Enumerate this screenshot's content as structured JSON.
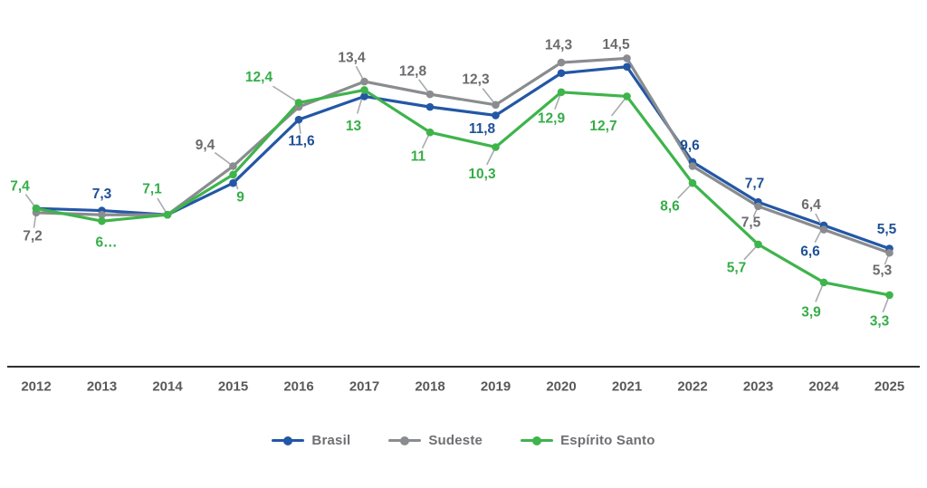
{
  "chart_data": {
    "type": "line",
    "title": "",
    "xlabel": "",
    "ylabel": "",
    "x_labels": [
      "2012",
      "2013",
      "2014",
      "2015",
      "2016",
      "2017",
      "2018",
      "2019",
      "2020",
      "2021",
      "2022",
      "2023",
      "2024",
      "2025"
    ],
    "ylim": [
      0,
      16.5
    ],
    "grid": false,
    "legend_position": "bottom",
    "background": "#FFFFFF",
    "axis_color": "#2F2F2F",
    "tick_color": "#58595B",
    "leader_color": "#A8AAAD",
    "legend_text_color": "#6E6F72",
    "series": [
      {
        "name": "Brasil",
        "color": "#2357A5",
        "label_color": "#1E5096",
        "values": [
          7.4,
          7.3,
          7.1,
          8.6,
          11.6,
          12.7,
          12.2,
          11.8,
          13.8,
          14.1,
          9.6,
          7.7,
          6.6,
          5.5
        ],
        "labels": [
          null,
          "7,3",
          null,
          null,
          "11,6",
          null,
          null,
          "11,8",
          null,
          null,
          "9,6",
          "7,7",
          "6,6",
          "5,5"
        ],
        "label_dx": [
          0,
          0,
          0,
          0,
          3,
          0,
          0,
          -15,
          0,
          0,
          -3,
          -4,
          -15,
          -3
        ],
        "label_dy": [
          0,
          -18,
          0,
          0,
          24,
          0,
          0,
          15,
          0,
          0,
          -18,
          -20,
          29,
          -21
        ],
        "leaders": [
          false,
          false,
          false,
          false,
          true,
          false,
          false,
          false,
          false,
          false,
          false,
          false,
          true,
          false
        ]
      },
      {
        "name": "Sudeste",
        "color": "#8A8C8F",
        "label_color": "#6A6B6E",
        "values": [
          7.2,
          7.1,
          7.1,
          9.4,
          12.2,
          13.4,
          12.8,
          12.3,
          14.3,
          14.5,
          9.4,
          7.5,
          6.4,
          5.3
        ],
        "labels": [
          "7,2",
          null,
          null,
          "9,4",
          null,
          "13,4",
          "12,8",
          "12,3",
          "14,3",
          "14,5",
          null,
          "7,5",
          "6,4",
          "5,3"
        ],
        "label_dx": [
          -4,
          0,
          0,
          -31,
          0,
          -14,
          -19,
          -22,
          -3,
          -12,
          0,
          -8,
          -14,
          -8
        ],
        "label_dy": [
          26,
          0,
          0,
          -23,
          0,
          -26,
          -25,
          -28,
          -19,
          -15,
          0,
          18,
          -27,
          20
        ],
        "leaders": [
          true,
          false,
          false,
          true,
          false,
          true,
          true,
          true,
          false,
          false,
          false,
          true,
          true,
          true
        ]
      },
      {
        "name": "Espírito Santo",
        "color": "#3EB44B",
        "label_color": "#35AD47",
        "values": [
          7.4,
          6.8,
          7.1,
          9.0,
          12.4,
          13.0,
          11.0,
          10.3,
          12.9,
          12.7,
          8.6,
          5.7,
          3.9,
          3.3
        ],
        "labels": [
          "7,4",
          "6…",
          "7,1",
          "9",
          "12,4",
          "13",
          "11",
          "10,3",
          "12,9",
          "12,7",
          "8,6",
          "5,7",
          "3,9",
          "3,3"
        ],
        "label_dx": [
          -18,
          5,
          -17,
          8,
          -44,
          -12,
          -13,
          -15,
          -11,
          -26,
          -25,
          -24,
          -14,
          -11
        ],
        "label_dy": [
          -24,
          24,
          -28,
          25,
          -28,
          40,
          27,
          30,
          29,
          33,
          26,
          26,
          33,
          29
        ],
        "leaders": [
          true,
          false,
          true,
          true,
          true,
          true,
          true,
          true,
          true,
          true,
          true,
          true,
          true,
          true
        ]
      }
    ]
  }
}
